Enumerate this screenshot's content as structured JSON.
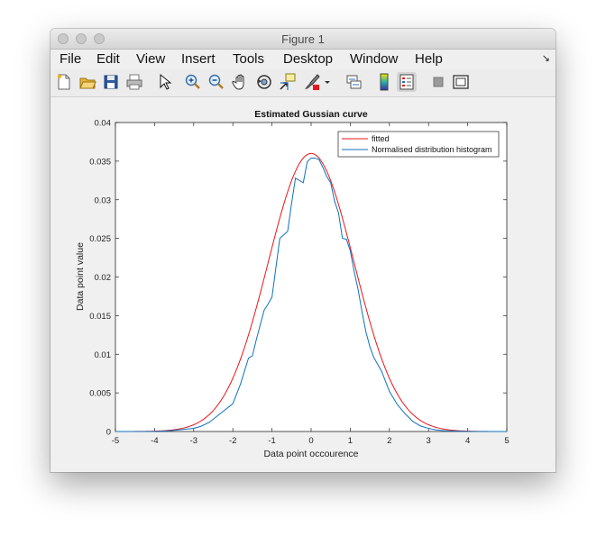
{
  "window": {
    "title": "Figure 1"
  },
  "menubar": {
    "items": [
      "File",
      "Edit",
      "View",
      "Insert",
      "Tools",
      "Desktop",
      "Window",
      "Help"
    ],
    "overflow_icon": "arrow-icon"
  },
  "toolbar": {
    "buttons": [
      "new-figure-icon",
      "open-file-icon",
      "save-icon",
      "print-icon",
      "edit-plot-icon",
      "zoom-in-icon",
      "zoom-out-icon",
      "pan-icon",
      "rotate-3d-icon",
      "data-cursor-icon",
      "brush-icon",
      "brush-dropdown-icon",
      "link-plot-icon",
      "insert-colorbar-icon",
      "insert-legend-icon",
      "hide-plot-tools-icon",
      "show-plot-tools-icon"
    ]
  },
  "chart_data": {
    "type": "line",
    "title": "Estimated Gussian curve",
    "xlabel": "Data point occourence",
    "ylabel": "Data point value",
    "xlim": [
      -5,
      5
    ],
    "ylim": [
      0,
      0.04
    ],
    "xticks": [
      "-5",
      "-4",
      "-3",
      "-2",
      "-1",
      "0",
      "1",
      "2",
      "3",
      "4",
      "5"
    ],
    "yticks": [
      "0",
      "0.005",
      "0.01",
      "0.015",
      "0.02",
      "0.025",
      "0.03",
      "0.035",
      "0.04"
    ],
    "legend_position": "top-right",
    "series": [
      {
        "name": "fitted",
        "color": "#e8161b",
        "mean": 0,
        "sigma": 1.1,
        "peak": 0.036,
        "x": [
          -5,
          -4.5,
          -4,
          -3.5,
          -3,
          -2.5,
          -2,
          -1.75,
          -1.5,
          -1.25,
          -1,
          -0.75,
          -0.5,
          -0.25,
          0,
          0.25,
          0.5,
          0.75,
          1,
          1.25,
          1.5,
          1.75,
          2,
          2.5,
          3,
          3.5,
          4,
          4.5,
          5
        ],
        "values": [
          0.0,
          0.0,
          0.0,
          0.0002,
          0.0009,
          0.0027,
          0.0069,
          0.0101,
          0.0141,
          0.0189,
          0.024,
          0.0284,
          0.0325,
          0.0351,
          0.036,
          0.0351,
          0.0325,
          0.0284,
          0.024,
          0.0189,
          0.0141,
          0.0101,
          0.0069,
          0.0027,
          0.0009,
          0.0002,
          0.0,
          0.0,
          0.0
        ]
      },
      {
        "name": "Normalised distribution histogram",
        "color": "#0e72bd",
        "x": [
          -5,
          -4,
          -3.6,
          -3.2,
          -3,
          -2.8,
          -2.6,
          -2.4,
          -2.2,
          -2,
          -1.8,
          -1.6,
          -1.5,
          -1.4,
          -1.2,
          -1.1,
          -1,
          -0.9,
          -0.8,
          -0.6,
          -0.5,
          -0.4,
          -0.3,
          -0.2,
          -0.1,
          0,
          0.1,
          0.2,
          0.3,
          0.4,
          0.5,
          0.6,
          0.7,
          0.8,
          0.9,
          1,
          1.1,
          1.2,
          1.3,
          1.4,
          1.5,
          1.6,
          1.8,
          2,
          2.2,
          2.4,
          2.6,
          2.8,
          3,
          3.2,
          3.4,
          4,
          5
        ],
        "values": [
          0,
          0,
          0.0001,
          0.0003,
          0.0004,
          0.0007,
          0.0012,
          0.002,
          0.0028,
          0.0036,
          0.0062,
          0.0095,
          0.0098,
          0.0119,
          0.0157,
          0.0165,
          0.0174,
          0.0212,
          0.025,
          0.0259,
          0.0295,
          0.0328,
          0.0325,
          0.0322,
          0.0349,
          0.0354,
          0.0354,
          0.0352,
          0.0342,
          0.033,
          0.0322,
          0.0298,
          0.0283,
          0.025,
          0.0249,
          0.0234,
          0.0207,
          0.0184,
          0.0155,
          0.0129,
          0.011,
          0.0096,
          0.0078,
          0.0052,
          0.0035,
          0.0023,
          0.0013,
          0.0007,
          0.0004,
          0.0002,
          0.0001,
          0,
          0
        ]
      }
    ]
  }
}
